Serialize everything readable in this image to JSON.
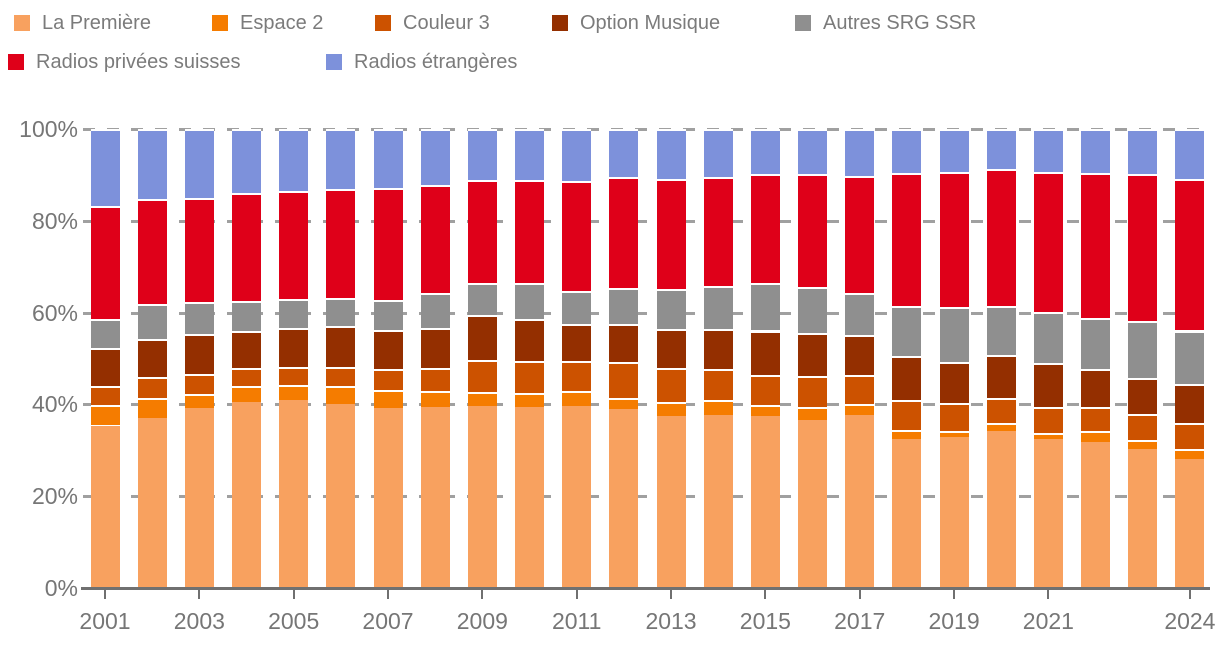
{
  "chart_data": {
    "type": "bar",
    "stacked": true,
    "percent": true,
    "title": "",
    "xlabel": "",
    "ylabel": "",
    "ylim": [
      0,
      100
    ],
    "grid": "dashed-horizontal",
    "legend_position": "top-left",
    "legend_wrap_after": 5,
    "categories": [
      2001,
      2002,
      2003,
      2004,
      2005,
      2006,
      2007,
      2008,
      2009,
      2010,
      2011,
      2012,
      2013,
      2014,
      2015,
      2016,
      2017,
      2018,
      2019,
      2020,
      2021,
      2022,
      2023,
      2024
    ],
    "x_ticks": [
      {
        "label": "2001",
        "index": 0
      },
      {
        "label": "2003",
        "index": 2
      },
      {
        "label": "2005",
        "index": 4
      },
      {
        "label": "2007",
        "index": 6
      },
      {
        "label": "2009",
        "index": 8
      },
      {
        "label": "2011",
        "index": 10
      },
      {
        "label": "2013",
        "index": 12
      },
      {
        "label": "2015",
        "index": 14
      },
      {
        "label": "2017",
        "index": 16
      },
      {
        "label": "2019",
        "index": 18
      },
      {
        "label": "2021",
        "index": 20
      },
      {
        "label": "2024",
        "index": 23
      }
    ],
    "y_ticks": [
      {
        "label": "0%",
        "value": 0
      },
      {
        "label": "20%",
        "value": 20
      },
      {
        "label": "40%",
        "value": 40
      },
      {
        "label": "60%",
        "value": 60
      },
      {
        "label": "80%",
        "value": 80
      },
      {
        "label": "100%",
        "value": 100
      }
    ],
    "series": [
      {
        "name": "La Première",
        "color": "#F8A15F",
        "values": [
          35.4,
          37.0,
          39.3,
          40.5,
          41.0,
          40.0,
          39.3,
          39.4,
          39.6,
          39.5,
          39.6,
          38.9,
          37.5,
          37.7,
          37.5,
          36.6,
          37.7,
          32.5,
          33.0,
          34.1,
          32.4,
          31.9,
          30.2,
          28.0
        ]
      },
      {
        "name": "Espace 2",
        "color": "#F57C00",
        "values": [
          4.5,
          4.5,
          3.0,
          3.5,
          3.2,
          4.0,
          3.8,
          3.5,
          3.2,
          2.9,
          3.3,
          2.6,
          3.0,
          3.3,
          2.4,
          2.9,
          2.3,
          1.9,
          1.2,
          1.9,
          1.4,
          2.2,
          2.0,
          2.3
        ]
      },
      {
        "name": "Couleur 3",
        "color": "#CC5200",
        "values": [
          4.2,
          4.5,
          4.4,
          3.9,
          4.0,
          4.2,
          4.6,
          5.1,
          6.9,
          7.1,
          6.6,
          7.8,
          7.5,
          6.7,
          6.5,
          6.7,
          6.4,
          6.6,
          6.2,
          5.5,
          5.7,
          5.4,
          5.6,
          5.6
        ]
      },
      {
        "name": "Option Musique",
        "color": "#942F00",
        "values": [
          8.1,
          8.2,
          8.6,
          8.2,
          8.4,
          8.9,
          8.6,
          8.7,
          9.8,
          9.2,
          8.0,
          8.2,
          8.4,
          8.7,
          9.7,
          9.4,
          8.7,
          9.5,
          8.9,
          9.2,
          9.6,
          8.3,
          8.0,
          8.5
        ]
      },
      {
        "name": "Autres SRG SSR",
        "color": "#8F8F8F",
        "values": [
          6.3,
          7.7,
          7.0,
          6.4,
          6.3,
          6.1,
          6.4,
          7.6,
          7.0,
          7.8,
          7.2,
          7.8,
          8.7,
          9.4,
          10.3,
          10.0,
          9.2,
          11.0,
          12.0,
          10.8,
          11.0,
          11.0,
          12.3,
          11.7
        ]
      },
      {
        "name": "Radios privées suisses",
        "color": "#DF0019",
        "values": [
          24.7,
          22.8,
          22.7,
          23.5,
          23.6,
          23.8,
          24.5,
          23.4,
          22.4,
          22.4,
          23.9,
          24.3,
          24.1,
          23.7,
          23.9,
          24.5,
          25.5,
          29.0,
          29.3,
          29.8,
          30.6,
          31.7,
          32.1,
          33.1
        ]
      },
      {
        "name": "Radios étrangères",
        "color": "#7D91DB",
        "values": [
          16.8,
          15.3,
          15.0,
          14.0,
          13.5,
          13.0,
          12.8,
          12.3,
          11.1,
          11.1,
          11.4,
          10.4,
          10.8,
          10.5,
          9.7,
          9.9,
          10.2,
          9.5,
          9.4,
          8.7,
          9.3,
          9.5,
          9.8,
          10.8
        ]
      }
    ]
  },
  "colors": {
    "grid": "#a0a0a0",
    "axis": "#707070",
    "label_text": "#767676",
    "legend_text": "#7b7b7b",
    "background": "#ffffff"
  }
}
